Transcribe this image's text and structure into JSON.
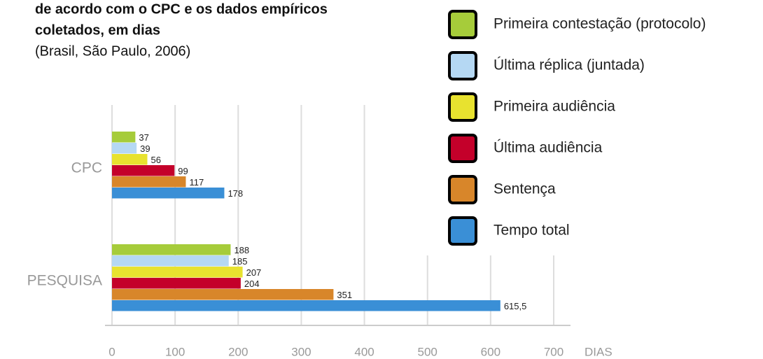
{
  "chart_data": {
    "type": "bar",
    "orientation": "horizontal",
    "title": [
      "de acordo com o CPC e os dados empíricos",
      "coletados, em dias"
    ],
    "subtitle": "(Brasil, São Paulo, 2006)",
    "x_label": "DIAS",
    "categories": [
      "CPC",
      "PESQUISA"
    ],
    "series": [
      {
        "name": "Primeira contestação (protocolo)",
        "color": "#a6cc3a",
        "values": [
          37,
          188
        ]
      },
      {
        "name": "Última réplica (juntada)",
        "color": "#b5d8f3",
        "values": [
          39,
          185
        ]
      },
      {
        "name": "Primeira audiência",
        "color": "#e8e22f",
        "values": [
          56,
          207
        ]
      },
      {
        "name": "Última audiência",
        "color": "#c4002a",
        "values": [
          99,
          204
        ]
      },
      {
        "name": "Sentença",
        "color": "#d8862a",
        "values": [
          117,
          351
        ]
      },
      {
        "name": "Tempo total",
        "color": "#3a8fd6",
        "values": [
          178,
          615.5
        ],
        "value_labels": [
          "178",
          "615,5"
        ]
      }
    ],
    "xlim": [
      0,
      700
    ],
    "xticks": [
      0,
      100,
      200,
      300,
      400,
      500,
      600,
      700
    ],
    "grid": true,
    "legend": "top-right"
  }
}
